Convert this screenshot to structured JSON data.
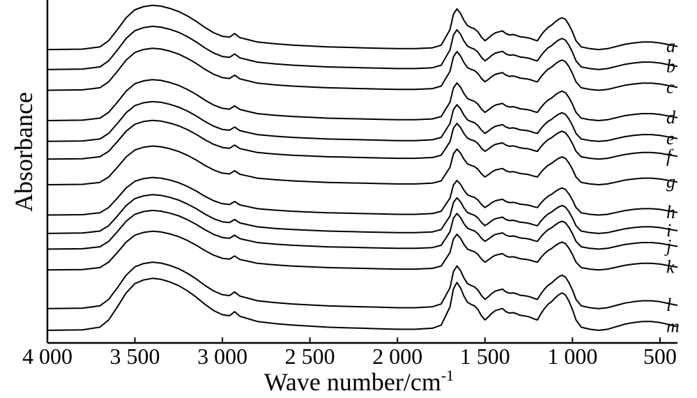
{
  "chart_data": {
    "type": "line",
    "title": "",
    "xlabel": "Wave number/cm",
    "xlabel_superscript": "-1",
    "ylabel": "Absorbance",
    "xlim": [
      4000,
      400
    ],
    "x_reversed": true,
    "y_ticks_shown": false,
    "grid": false,
    "legend": "none",
    "x_ticks": [
      {
        "value": 4000,
        "label": "4 000"
      },
      {
        "value": 3500,
        "label": "3 500"
      },
      {
        "value": 3000,
        "label": "3 000"
      },
      {
        "value": 2500,
        "label": "2 500"
      },
      {
        "value": 2000,
        "label": "2 000"
      },
      {
        "value": 1500,
        "label": "1 500"
      },
      {
        "value": 1000,
        "label": "1 000"
      },
      {
        "value": 500,
        "label": "500"
      }
    ],
    "y_unit": "stacked absorbance (arbitrary units, 0 = bottom of axes)",
    "spectrum_shape": {
      "x": [
        4000,
        3800,
        3700,
        3650,
        3600,
        3550,
        3500,
        3450,
        3400,
        3350,
        3300,
        3250,
        3200,
        3150,
        3100,
        3050,
        3000,
        2960,
        2930,
        2900,
        2870,
        2850,
        2800,
        2700,
        2600,
        2500,
        2400,
        2300,
        2200,
        2100,
        2000,
        1900,
        1800,
        1750,
        1700,
        1680,
        1660,
        1640,
        1620,
        1600,
        1580,
        1560,
        1540,
        1520,
        1500,
        1480,
        1460,
        1440,
        1420,
        1400,
        1380,
        1360,
        1340,
        1320,
        1300,
        1280,
        1260,
        1240,
        1220,
        1200,
        1180,
        1160,
        1140,
        1120,
        1100,
        1080,
        1060,
        1040,
        1020,
        1000,
        980,
        950,
        900,
        850,
        800,
        750,
        700,
        650,
        600,
        550,
        500,
        450,
        400
      ],
      "y": [
        0,
        0.01,
        0.06,
        0.2,
        0.45,
        0.72,
        0.9,
        0.97,
        1.0,
        0.98,
        0.93,
        0.86,
        0.76,
        0.64,
        0.5,
        0.38,
        0.3,
        0.28,
        0.36,
        0.27,
        0.24,
        0.22,
        0.17,
        0.13,
        0.1,
        0.08,
        0.06,
        0.05,
        0.04,
        0.03,
        0.02,
        0.02,
        0.04,
        0.1,
        0.45,
        0.8,
        0.92,
        0.82,
        0.66,
        0.54,
        0.5,
        0.47,
        0.4,
        0.28,
        0.2,
        0.26,
        0.33,
        0.38,
        0.4,
        0.42,
        0.36,
        0.33,
        0.34,
        0.32,
        0.29,
        0.28,
        0.27,
        0.25,
        0.22,
        0.2,
        0.32,
        0.42,
        0.5,
        0.55,
        0.62,
        0.68,
        0.72,
        0.68,
        0.56,
        0.4,
        0.2,
        0.06,
        0.02,
        0.0,
        0.02,
        0.07,
        0.12,
        0.15,
        0.17,
        0.17,
        0.15,
        0.11,
        0.07
      ]
    },
    "series": [
      {
        "name": "a",
        "offset": 13.26,
        "amplitude": 2.0
      },
      {
        "name": "b",
        "offset": 12.36,
        "amplitude": 1.95
      },
      {
        "name": "c",
        "offset": 11.42,
        "amplitude": 1.9
      },
      {
        "name": "d",
        "offset": 10.05,
        "amplitude": 1.85
      },
      {
        "name": "e",
        "offset": 9.11,
        "amplitude": 1.8
      },
      {
        "name": "f",
        "offset": 8.31,
        "amplitude": 1.75
      },
      {
        "name": "g",
        "offset": 7.15,
        "amplitude": 1.75
      },
      {
        "name": "h",
        "offset": 5.78,
        "amplitude": 1.7
      },
      {
        "name": "i",
        "offset": 4.95,
        "amplitude": 1.75
      },
      {
        "name": "j",
        "offset": 4.24,
        "amplitude": 1.75
      },
      {
        "name": "k",
        "offset": 3.3,
        "amplitude": 1.75
      },
      {
        "name": "l",
        "offset": 1.55,
        "amplitude": 2.1
      },
      {
        "name": "m",
        "offset": 0.57,
        "amplitude": 2.35
      }
    ],
    "ylim": [
      0,
      15.5
    ]
  }
}
